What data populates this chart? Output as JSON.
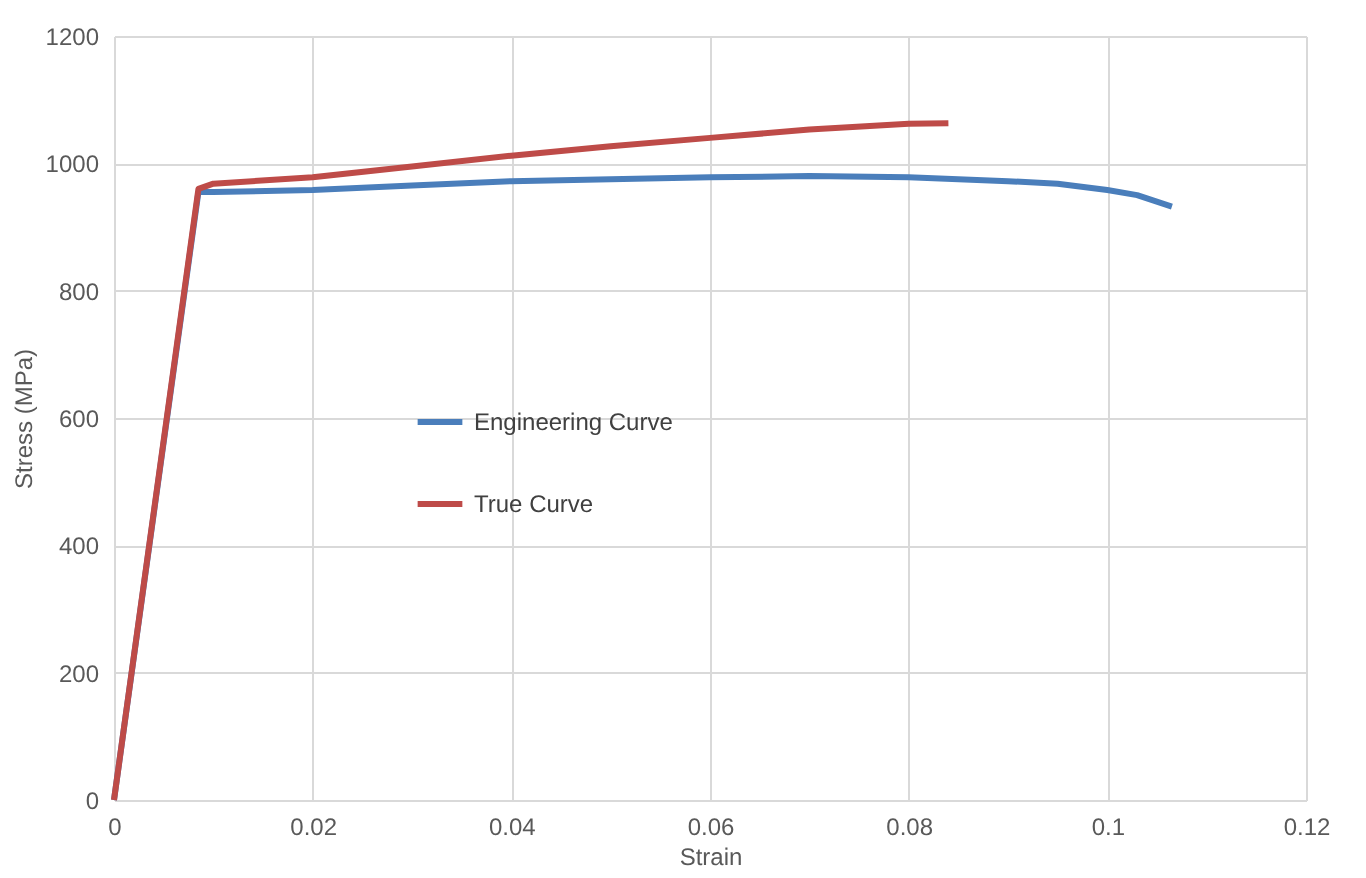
{
  "chart_data": {
    "type": "line",
    "xlabel": "Strain",
    "ylabel": "Stress (MPa)",
    "xlim": [
      0,
      0.12
    ],
    "xticks": [
      0,
      0.02,
      0.04,
      0.06,
      0.08,
      0.1,
      0.12
    ],
    "ylim": [
      0,
      1200
    ],
    "yticks": [
      0,
      200,
      400,
      600,
      800,
      1000,
      1200
    ],
    "grid": true,
    "legend": "left",
    "line_style": "solid",
    "marker": "none",
    "series": [
      {
        "name": "Engineering Curve",
        "color": "#4a7ebb",
        "x": [
          0,
          0.0085,
          0.01,
          0.02,
          0.03,
          0.04,
          0.05,
          0.06,
          0.07,
          0.08,
          0.09,
          0.095,
          0.1,
          0.103,
          0.1065
        ],
        "values": [
          0,
          955,
          955,
          958,
          965,
          972,
          975,
          978,
          980,
          978,
          972,
          968,
          958,
          950,
          932
        ]
      },
      {
        "name": "True Curve",
        "color": "#be4b48",
        "x": [
          0,
          0.0085,
          0.01,
          0.02,
          0.03,
          0.04,
          0.05,
          0.06,
          0.07,
          0.08,
          0.084
        ],
        "values": [
          0,
          960,
          968,
          978,
          995,
          1012,
          1027,
          1040,
          1053,
          1062,
          1063
        ]
      }
    ]
  }
}
